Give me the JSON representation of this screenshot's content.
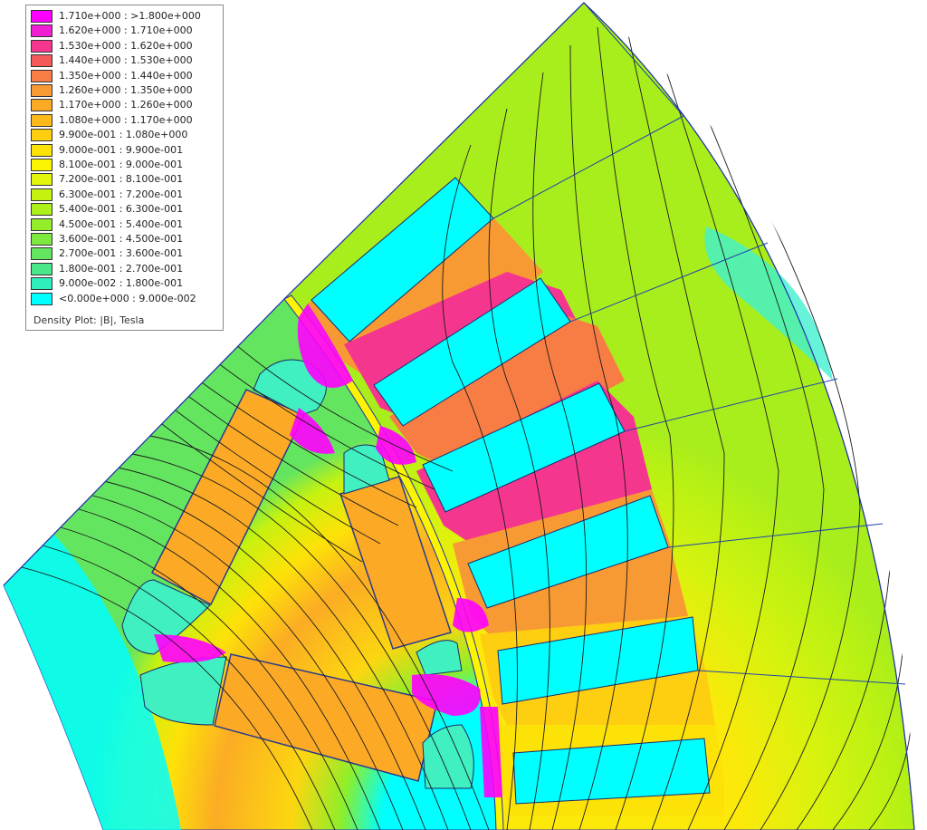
{
  "legend": {
    "caption": "Density Plot: |B|, Tesla",
    "entries": [
      {
        "label": "1.710e+000 : >1.800e+000",
        "color": "#ff00ff"
      },
      {
        "label": "1.620e+000 : 1.710e+000",
        "color": "#f01fd4"
      },
      {
        "label": "1.530e+000 : 1.620e+000",
        "color": "#f5368e"
      },
      {
        "label": "1.440e+000 : 1.530e+000",
        "color": "#f55a5a"
      },
      {
        "label": "1.350e+000 : 1.440e+000",
        "color": "#f77d44"
      },
      {
        "label": "1.260e+000 : 1.350e+000",
        "color": "#f89a34"
      },
      {
        "label": "1.170e+000 : 1.260e+000",
        "color": "#fcaa26"
      },
      {
        "label": "1.080e+000 : 1.170e+000",
        "color": "#feb91a"
      },
      {
        "label": "9.900e-001 : 1.080e+000",
        "color": "#fece10"
      },
      {
        "label": "9.000e-001 : 9.900e-001",
        "color": "#fde208"
      },
      {
        "label": "8.100e-001 : 9.000e-001",
        "color": "#fcf400"
      },
      {
        "label": "7.200e-001 : 8.100e-001",
        "color": "#e2f50d"
      },
      {
        "label": "6.300e-001 : 7.200e-001",
        "color": "#c6f20f"
      },
      {
        "label": "5.400e-001 : 6.300e-001",
        "color": "#aef01a"
      },
      {
        "label": "4.500e-001 : 5.400e-001",
        "color": "#94ec2b"
      },
      {
        "label": "3.600e-001 : 4.500e-001",
        "color": "#7de83e"
      },
      {
        "label": "2.700e-001 : 3.600e-001",
        "color": "#64e560"
      },
      {
        "label": "1.800e-001 : 2.700e-001",
        "color": "#48e88a"
      },
      {
        "label": "9.000e-002 : 1.800e-001",
        "color": "#2eefbc"
      },
      {
        "label": "<0.000e+000 : 9.000e-002",
        "color": "#00ffff"
      }
    ]
  }
}
